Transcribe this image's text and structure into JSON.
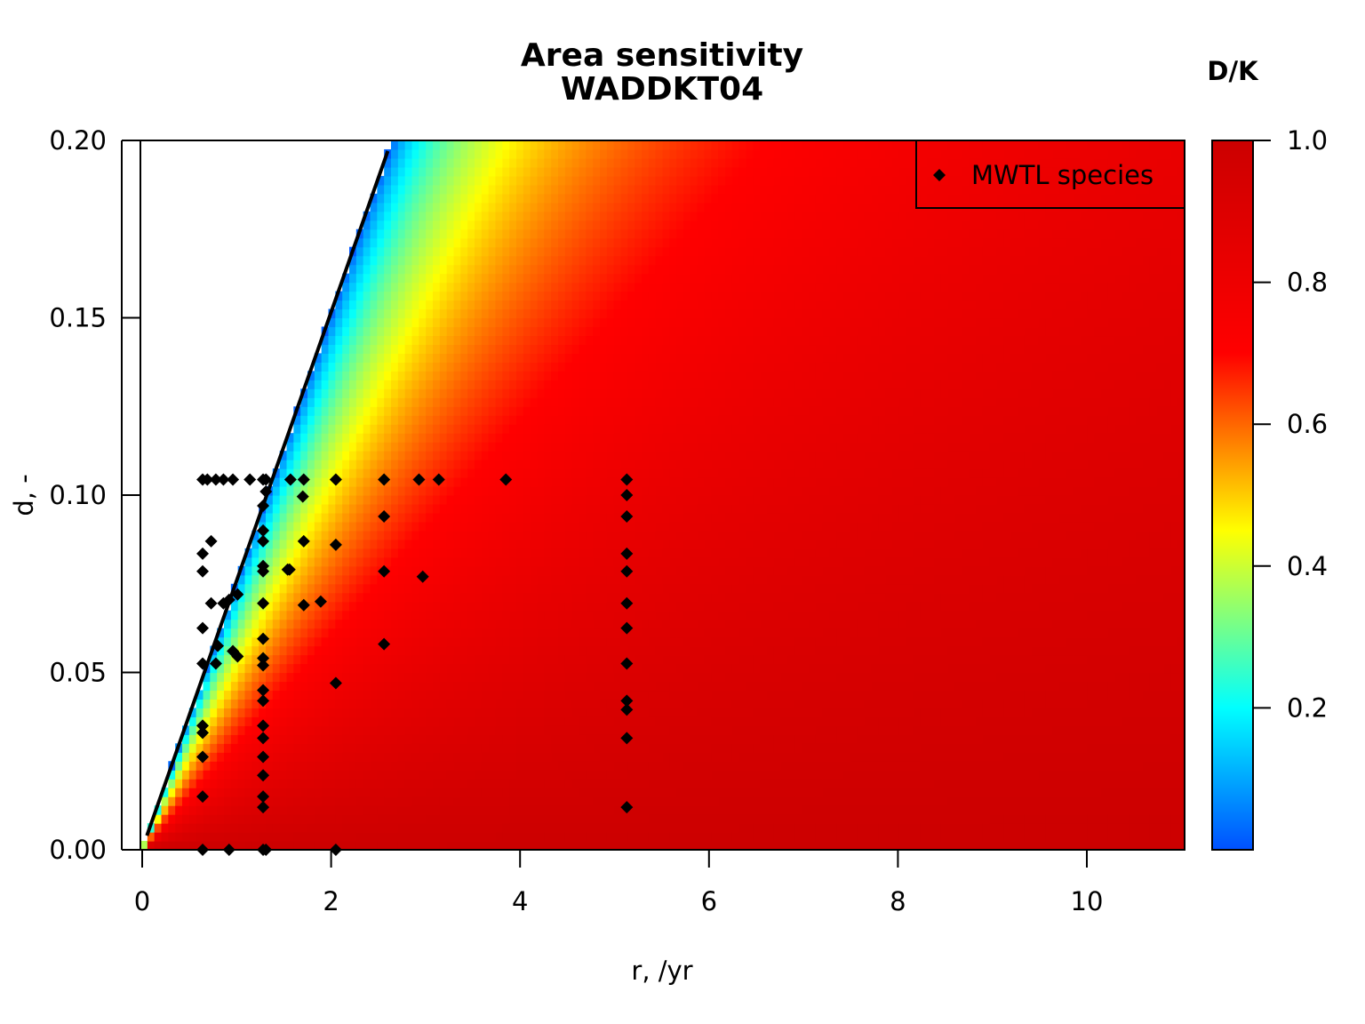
{
  "chart_data": {
    "type": "heatmap",
    "title": "Area sensitivity",
    "subtitle": "WADDKT04",
    "xlabel": "r, /yr",
    "ylabel": "d, -",
    "xlim": [
      0,
      11
    ],
    "ylim": [
      0,
      0.2
    ],
    "x_ticks": [
      "0",
      "2",
      "4",
      "6",
      "8",
      "10"
    ],
    "x_tick_values": [
      0,
      2,
      4,
      6,
      8,
      10
    ],
    "y_ticks": [
      "0.00",
      "0.05",
      "0.10",
      "0.15",
      "0.20"
    ],
    "y_tick_values": [
      0,
      0.05,
      0.1,
      0.15,
      0.2
    ],
    "colorbar": {
      "title": "D/K",
      "range": [
        0,
        1
      ],
      "ticks": [
        "0.2",
        "0.4",
        "0.6",
        "0.8",
        "1.0"
      ],
      "tick_values": [
        0.2,
        0.4,
        0.6,
        0.8,
        1.0
      ],
      "colors": [
        "#0050ff",
        "#00ffff",
        "#ffff00",
        "#ff0000",
        "#cc0000"
      ]
    },
    "boundary_line": {
      "x": [
        0.05,
        2.6
      ],
      "y": [
        0.004,
        0.197
      ]
    },
    "legend": {
      "label": "MWTL species",
      "position": "top-right",
      "marker": "diamond"
    },
    "points": [
      {
        "x": 0.64,
        "y": 0.1044
      },
      {
        "x": 0.69,
        "y": 0.1044
      },
      {
        "x": 0.78,
        "y": 0.1044
      },
      {
        "x": 0.86,
        "y": 0.1044
      },
      {
        "x": 0.96,
        "y": 0.1044
      },
      {
        "x": 1.14,
        "y": 0.1044
      },
      {
        "x": 1.28,
        "y": 0.1044
      },
      {
        "x": 1.31,
        "y": 0.1044
      },
      {
        "x": 1.57,
        "y": 0.1044
      },
      {
        "x": 1.71,
        "y": 0.1044
      },
      {
        "x": 2.05,
        "y": 0.1044
      },
      {
        "x": 2.56,
        "y": 0.1044
      },
      {
        "x": 2.93,
        "y": 0.1044
      },
      {
        "x": 3.14,
        "y": 0.1044
      },
      {
        "x": 3.85,
        "y": 0.1044
      },
      {
        "x": 5.13,
        "y": 0.1044
      },
      {
        "x": 1.31,
        "y": 0.101
      },
      {
        "x": 1.7,
        "y": 0.0996
      },
      {
        "x": 5.13,
        "y": 0.1
      },
      {
        "x": 1.28,
        "y": 0.097
      },
      {
        "x": 2.56,
        "y": 0.094
      },
      {
        "x": 5.13,
        "y": 0.094
      },
      {
        "x": 1.28,
        "y": 0.09
      },
      {
        "x": 0.73,
        "y": 0.087
      },
      {
        "x": 1.28,
        "y": 0.087
      },
      {
        "x": 1.71,
        "y": 0.087
      },
      {
        "x": 2.05,
        "y": 0.086
      },
      {
        "x": 0.64,
        "y": 0.0835
      },
      {
        "x": 5.13,
        "y": 0.0835
      },
      {
        "x": 1.28,
        "y": 0.08
      },
      {
        "x": 0.64,
        "y": 0.0785
      },
      {
        "x": 1.28,
        "y": 0.0785
      },
      {
        "x": 1.54,
        "y": 0.079
      },
      {
        "x": 1.56,
        "y": 0.079
      },
      {
        "x": 2.56,
        "y": 0.0785
      },
      {
        "x": 2.97,
        "y": 0.077
      },
      {
        "x": 5.13,
        "y": 0.0785
      },
      {
        "x": 1.01,
        "y": 0.072
      },
      {
        "x": 0.73,
        "y": 0.0695
      },
      {
        "x": 0.86,
        "y": 0.0695
      },
      {
        "x": 0.92,
        "y": 0.0705
      },
      {
        "x": 1.28,
        "y": 0.0695
      },
      {
        "x": 1.71,
        "y": 0.069
      },
      {
        "x": 1.89,
        "y": 0.07
      },
      {
        "x": 5.13,
        "y": 0.0695
      },
      {
        "x": 0.64,
        "y": 0.0625
      },
      {
        "x": 5.13,
        "y": 0.0625
      },
      {
        "x": 1.28,
        "y": 0.0595
      },
      {
        "x": 2.56,
        "y": 0.058
      },
      {
        "x": 0.8,
        "y": 0.0575
      },
      {
        "x": 0.96,
        "y": 0.056
      },
      {
        "x": 1.01,
        "y": 0.0545
      },
      {
        "x": 1.28,
        "y": 0.054
      },
      {
        "x": 0.64,
        "y": 0.0525
      },
      {
        "x": 0.78,
        "y": 0.0525
      },
      {
        "x": 1.28,
        "y": 0.052
      },
      {
        "x": 5.13,
        "y": 0.0525
      },
      {
        "x": 2.05,
        "y": 0.047
      },
      {
        "x": 1.28,
        "y": 0.045
      },
      {
        "x": 1.28,
        "y": 0.042
      },
      {
        "x": 5.13,
        "y": 0.042
      },
      {
        "x": 5.13,
        "y": 0.0395
      },
      {
        "x": 0.64,
        "y": 0.035
      },
      {
        "x": 1.28,
        "y": 0.035
      },
      {
        "x": 0.64,
        "y": 0.033
      },
      {
        "x": 1.28,
        "y": 0.0315
      },
      {
        "x": 5.13,
        "y": 0.0315
      },
      {
        "x": 0.64,
        "y": 0.0262
      },
      {
        "x": 1.28,
        "y": 0.0262
      },
      {
        "x": 1.28,
        "y": 0.021
      },
      {
        "x": 0.64,
        "y": 0.015
      },
      {
        "x": 1.28,
        "y": 0.015
      },
      {
        "x": 1.28,
        "y": 0.012
      },
      {
        "x": 5.13,
        "y": 0.012
      },
      {
        "x": 0.64,
        "y": 0.0
      },
      {
        "x": 0.92,
        "y": 0.0
      },
      {
        "x": 1.28,
        "y": 0.0
      },
      {
        "x": 1.31,
        "y": 0.0
      },
      {
        "x": 2.05,
        "y": 0.0
      }
    ]
  }
}
